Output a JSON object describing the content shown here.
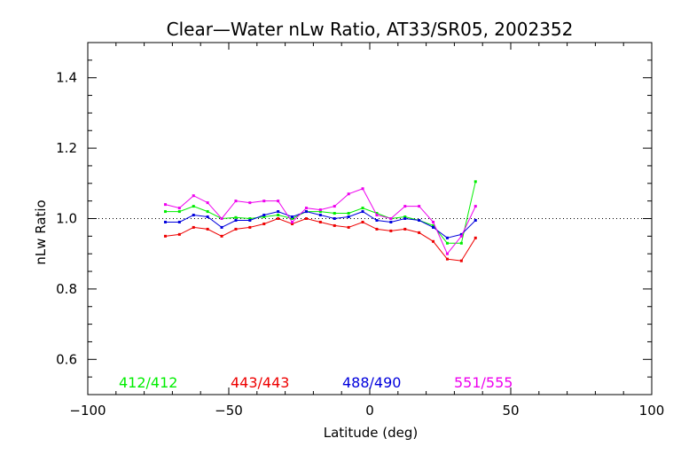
{
  "chart_data": {
    "type": "line",
    "title": "Clear—Water nLw Ratio, AT33/SR05, 2002352",
    "xlabel": "Latitude (deg)",
    "ylabel": "nLw Ratio",
    "xlim": [
      -100,
      100
    ],
    "ylim": [
      0.5,
      1.5
    ],
    "x_ticks": [
      "−100",
      "−50",
      "0",
      "50",
      "100"
    ],
    "y_ticks": [
      "0.6",
      "0.8",
      "1.0",
      "1.2",
      "1.4"
    ],
    "reference_line": 1.0,
    "grid": false,
    "legend_position": "bottom",
    "x": [
      -72.5,
      -67.5,
      -62.5,
      -57.5,
      -52.5,
      -47.5,
      -42.5,
      -37.5,
      -32.5,
      -27.5,
      -22.5,
      -17.5,
      -12.5,
      -7.5,
      -2.5,
      2.5,
      7.5,
      12.5,
      17.5,
      22.5,
      27.5,
      32.5,
      37.5
    ],
    "series": [
      {
        "name": "412/412",
        "color": "#00ee00",
        "values": [
          1.02,
          1.02,
          1.035,
          1.02,
          1.0,
          1.003,
          1.0,
          1.005,
          1.01,
          1.0,
          1.02,
          1.02,
          1.015,
          1.015,
          1.03,
          1.015,
          1.0,
          1.005,
          0.995,
          0.98,
          0.93,
          0.93,
          1.105
        ]
      },
      {
        "name": "443/443",
        "color": "#ee0000",
        "values": [
          0.95,
          0.955,
          0.975,
          0.97,
          0.95,
          0.97,
          0.975,
          0.985,
          1.0,
          0.985,
          1.0,
          0.99,
          0.98,
          0.975,
          0.99,
          0.97,
          0.965,
          0.97,
          0.96,
          0.935,
          0.885,
          0.88,
          0.945
        ]
      },
      {
        "name": "488/490",
        "color": "#0000dd",
        "values": [
          0.99,
          0.99,
          1.01,
          1.005,
          0.975,
          0.995,
          0.995,
          1.01,
          1.02,
          1.005,
          1.02,
          1.01,
          1.0,
          1.005,
          1.02,
          0.995,
          0.99,
          1.0,
          0.995,
          0.975,
          0.945,
          0.955,
          0.995
        ]
      },
      {
        "name": "551/555",
        "color": "#ee00ee",
        "values": [
          1.04,
          1.03,
          1.065,
          1.045,
          1.0,
          1.05,
          1.045,
          1.05,
          1.05,
          0.99,
          1.03,
          1.025,
          1.035,
          1.07,
          1.085,
          1.01,
          1.0,
          1.035,
          1.035,
          0.99,
          0.9,
          0.95,
          1.035
        ]
      }
    ]
  }
}
